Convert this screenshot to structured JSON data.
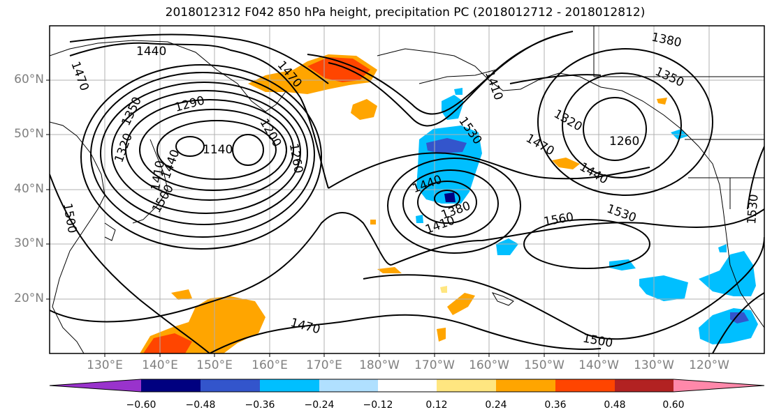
{
  "title": "2018012312 F042 850 hPa height, precipitation PC (2018012712 - 2018012812)",
  "lat_labels": [
    "60°N",
    "50°N",
    "40°N",
    "30°N",
    "20°N"
  ],
  "lon_labels": [
    "130°E",
    "140°E",
    "150°E",
    "160°E",
    "170°E",
    "180°W",
    "170°W",
    "160°W",
    "150°W",
    "140°W",
    "130°W",
    "120°W"
  ],
  "contour_labels": [
    "1440",
    "1470",
    "1470",
    "1350",
    "1320",
    "1290",
    "1140",
    "1260",
    "1410",
    "1500",
    "1200",
    "1410",
    "1530",
    "1440",
    "1380",
    "1410",
    "1380",
    "1350",
    "1320",
    "1470",
    "1440",
    "1260",
    "1560",
    "1530",
    "1530",
    "1470",
    "1500",
    "1500",
    "1440"
  ],
  "colorbar": {
    "ticks": [
      "−0.60",
      "−0.48",
      "−0.36",
      "−0.24",
      "−0.12",
      "0.12",
      "0.24",
      "0.36",
      "0.48",
      "0.60"
    ],
    "colors": [
      "#9933cc",
      "#000080",
      "#3355cc",
      "#00bfff",
      "#b0e0ff",
      "#ffffff",
      "#ffe680",
      "#ffa500",
      "#ff4500",
      "#b22222",
      "#ff88aa"
    ]
  }
}
